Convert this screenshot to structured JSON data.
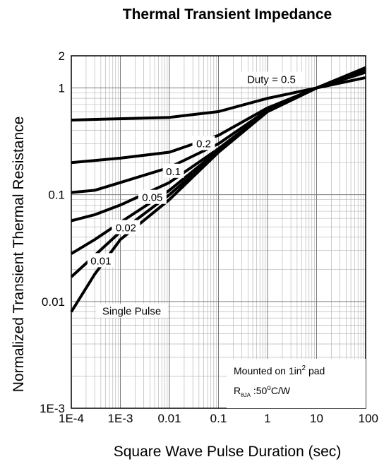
{
  "chart_data": {
    "type": "line",
    "title": "Thermal Transient Impedance",
    "xlabel": "Square Wave Pulse Duration (sec)",
    "ylabel": "Normalized Transient Thermal Resistance",
    "x_scale": "log",
    "y_scale": "log",
    "xlim": [
      0.0001,
      100
    ],
    "ylim": [
      0.001,
      2
    ],
    "x_ticks": [
      {
        "value": 0.0001,
        "label": "1E-4"
      },
      {
        "value": 0.001,
        "label": "1E-3"
      },
      {
        "value": 0.01,
        "label": "0.01"
      },
      {
        "value": 0.1,
        "label": "0.1"
      },
      {
        "value": 1,
        "label": "1"
      },
      {
        "value": 10,
        "label": "10"
      },
      {
        "value": 100,
        "label": "100"
      }
    ],
    "y_ticks": [
      {
        "value": 0.001,
        "label": "1E-3"
      },
      {
        "value": 0.01,
        "label": "0.01"
      },
      {
        "value": 0.1,
        "label": "0.1"
      },
      {
        "value": 1,
        "label": "1"
      },
      {
        "value": 2,
        "label": "2"
      }
    ],
    "grid": true,
    "series": [
      {
        "name": "Duty = 0.5",
        "x": [
          0.0001,
          0.01,
          0.1,
          1,
          10,
          100
        ],
        "y": [
          0.5,
          0.53,
          0.6,
          0.8,
          1.0,
          1.25
        ]
      },
      {
        "name": "0.2",
        "x": [
          0.0001,
          0.001,
          0.01,
          0.1,
          1,
          10,
          100
        ],
        "y": [
          0.2,
          0.22,
          0.25,
          0.36,
          0.65,
          1.0,
          1.4
        ]
      },
      {
        "name": "0.1",
        "x": [
          0.0001,
          0.0003,
          0.001,
          0.01,
          0.1,
          1,
          10,
          100
        ],
        "y": [
          0.105,
          0.11,
          0.13,
          0.18,
          0.3,
          0.62,
          1.0,
          1.5
        ]
      },
      {
        "name": "0.05",
        "x": [
          0.0001,
          0.0003,
          0.001,
          0.01,
          0.1,
          1,
          10,
          100
        ],
        "y": [
          0.057,
          0.065,
          0.08,
          0.13,
          0.27,
          0.6,
          1.0,
          1.5
        ]
      },
      {
        "name": "0.02",
        "x": [
          0.0001,
          0.0003,
          0.001,
          0.01,
          0.1,
          1,
          10,
          100
        ],
        "y": [
          0.028,
          0.038,
          0.055,
          0.11,
          0.26,
          0.6,
          1.0,
          1.5
        ]
      },
      {
        "name": "0.01",
        "x": [
          0.0001,
          0.0003,
          0.001,
          0.01,
          0.1,
          1,
          10,
          100
        ],
        "y": [
          0.017,
          0.027,
          0.045,
          0.1,
          0.25,
          0.6,
          1.0,
          1.5
        ]
      },
      {
        "name": "Single Pulse",
        "x": [
          0.0001,
          0.0003,
          0.001,
          0.01,
          0.1,
          1,
          10,
          100
        ],
        "y": [
          0.008,
          0.018,
          0.038,
          0.09,
          0.25,
          0.6,
          1.0,
          1.55
        ]
      }
    ],
    "annotations": {
      "note_line1": "Mounted on 1in",
      "note_line1_sup": "2",
      "note_line1_end": " pad",
      "note_line2_r": "R",
      "note_line2_sub": "θJA",
      "note_line2_value": " :50",
      "note_line2_deg": "o",
      "note_line2_end": "C/W"
    }
  }
}
